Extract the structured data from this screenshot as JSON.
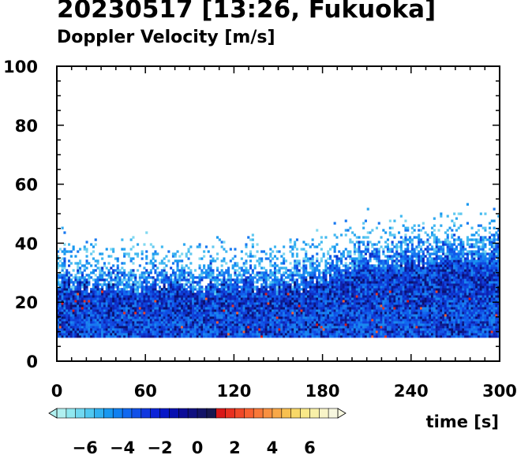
{
  "title": "20230517 [13:26, Fukuoka]",
  "subtitle": "Doppler Velocity [m/s]",
  "chart_data": {
    "type": "heatmap",
    "title": "20230517 [13:26, Fukuoka]",
    "subtitle": "Doppler Velocity [m/s]",
    "xlabel": "time [s]",
    "ylabel": "",
    "xlim": [
      0,
      300
    ],
    "ylim": [
      0,
      100
    ],
    "x_ticks": [
      0,
      60,
      120,
      180,
      240,
      300
    ],
    "x_tick_labels": [
      "0",
      "60",
      "120",
      "180",
      "240",
      "300"
    ],
    "y_ticks": [
      0,
      20,
      40,
      60,
      80,
      100
    ],
    "y_tick_labels": [
      "0",
      "20",
      "40",
      "60",
      "80",
      "100"
    ],
    "grid": false,
    "data_bottom": 8,
    "echo_top_profile": {
      "x": [
        0,
        30,
        60,
        90,
        120,
        150,
        180,
        210,
        240,
        270,
        300
      ],
      "top": [
        33,
        30,
        31,
        31,
        31,
        30,
        34,
        38,
        40,
        41,
        42
      ]
    },
    "colorbar": {
      "min": -7.5,
      "max": 7.5,
      "tick_values": [
        -6,
        -4,
        -2,
        0,
        2,
        4,
        6
      ],
      "tick_labels": [
        "−6",
        "−4",
        "−2",
        "0",
        "2",
        "4",
        "6"
      ],
      "colors": [
        "#b0f0f0",
        "#90e8f0",
        "#70d8f0",
        "#50c8f0",
        "#30b0f0",
        "#1898f0",
        "#1080f0",
        "#1068f0",
        "#1050e8",
        "#1038e0",
        "#0c24d8",
        "#0818c8",
        "#0810b0",
        "#0c0c98",
        "#101080",
        "#141468",
        "#181850",
        "#d81818",
        "#e83020",
        "#f04828",
        "#f86030",
        "#f87838",
        "#f89040",
        "#f8a848",
        "#f8c050",
        "#f8d868",
        "#f8e888",
        "#f8f0a8",
        "#f8f4c8",
        "#f8f8e0"
      ]
    }
  }
}
